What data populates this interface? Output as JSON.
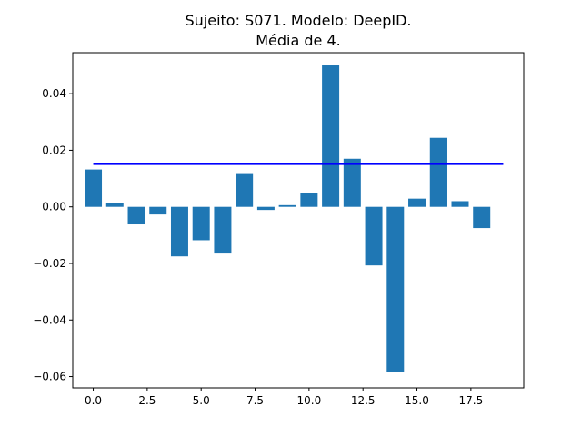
{
  "chart_data": {
    "type": "bar",
    "title_line1": "Sujeito: S071. Modelo: DeepID.",
    "title_line2": "Média de 4.",
    "xlabel": "",
    "ylabel": "",
    "x": [
      0,
      1,
      2,
      3,
      4,
      5,
      6,
      7,
      8,
      9,
      10,
      11,
      12,
      13,
      14,
      15,
      16,
      17,
      18
    ],
    "values": [
      0.0132,
      0.0012,
      -0.0062,
      -0.0027,
      -0.0175,
      -0.0118,
      -0.0165,
      0.0116,
      -0.0011,
      0.0006,
      0.0048,
      0.05,
      0.017,
      -0.0207,
      -0.0585,
      0.0029,
      0.0244,
      0.002,
      -0.0075
    ],
    "mean_line": {
      "value": 0.0151,
      "x_start": 0,
      "x_end": 19,
      "color": "#0000ff"
    },
    "bar_color": "#1f77b4",
    "xlim": [
      -0.95,
      19.95
    ],
    "ylim": [
      -0.064,
      0.0545
    ],
    "x_ticks": [
      0.0,
      2.5,
      5.0,
      7.5,
      10.0,
      12.5,
      15.0,
      17.5
    ],
    "x_tick_labels": [
      "0.0",
      "2.5",
      "5.0",
      "7.5",
      "10.0",
      "12.5",
      "15.0",
      "17.5"
    ],
    "y_ticks": [
      -0.06,
      -0.04,
      -0.02,
      0.0,
      0.02,
      0.04
    ],
    "y_tick_labels": [
      "−0.06",
      "−0.04",
      "−0.02",
      "0.00",
      "0.02",
      "0.04"
    ],
    "grid": false,
    "legend": "none"
  }
}
